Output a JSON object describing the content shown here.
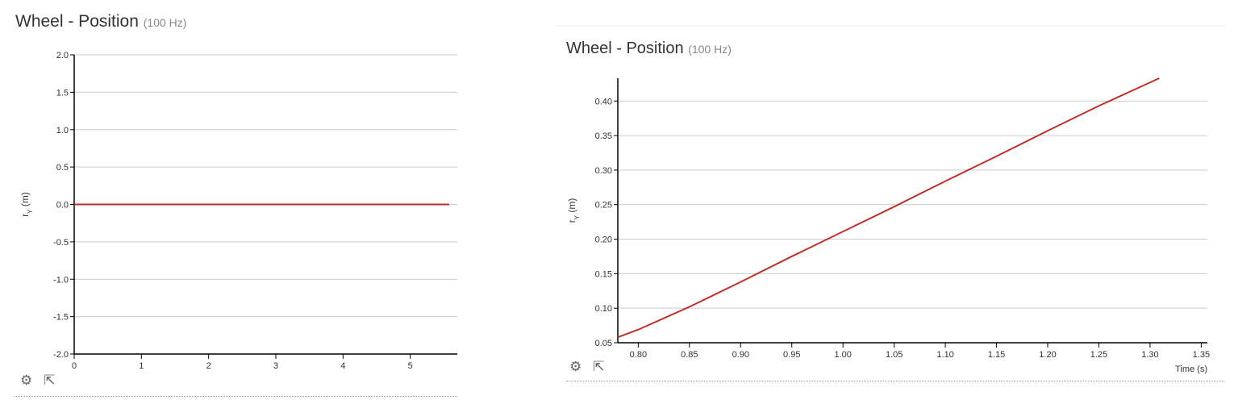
{
  "chart_data": [
    {
      "type": "line",
      "title": "Wheel - Position",
      "subtitle": "(100 Hz)",
      "xlabel": "",
      "ylabel": "r_Y (m)",
      "ylabel_main": "r",
      "ylabel_sub": "Y",
      "ylabel_unit": " (m)",
      "xlim": [
        0,
        5.7
      ],
      "ylim": [
        -2.0,
        2.0
      ],
      "xticks": [
        "0",
        "1",
        "2",
        "3",
        "4",
        "5"
      ],
      "xtick_values": [
        0,
        1,
        2,
        3,
        4,
        5
      ],
      "yticks": [
        "2.0",
        "1.5",
        "1.0",
        "0.5",
        "0.0",
        "-0.5",
        "-1.0",
        "-1.5",
        "-2.0"
      ],
      "ytick_values": [
        2,
        1.5,
        1,
        0.5,
        0,
        -0.5,
        -1,
        -1.5,
        -2
      ],
      "grid": true,
      "line_color": "#c0302b",
      "series": [
        {
          "x": [
            0,
            5.58
          ],
          "y": [
            0,
            0
          ]
        }
      ]
    },
    {
      "type": "line",
      "title": "Wheel - Position",
      "subtitle": "(100 Hz)",
      "xlabel": "Time (s)",
      "ylabel": "r_Y (m)",
      "ylabel_main": "r",
      "ylabel_sub": "Y",
      "ylabel_unit": " (m)",
      "xlim": [
        0.78,
        1.356
      ],
      "ylim": [
        0.05,
        0.433
      ],
      "xticks": [
        "0.80",
        "0.85",
        "0.90",
        "0.95",
        "1.00",
        "1.05",
        "1.10",
        "1.15",
        "1.20",
        "1.25",
        "1.30",
        "1.35"
      ],
      "xtick_values": [
        0.8,
        0.85,
        0.9,
        0.95,
        1.0,
        1.05,
        1.1,
        1.15,
        1.2,
        1.25,
        1.3,
        1.35
      ],
      "yticks": [
        "0.40",
        "0.35",
        "0.30",
        "0.25",
        "0.20",
        "0.15",
        "0.10",
        "0.05"
      ],
      "ytick_values": [
        0.4,
        0.35,
        0.3,
        0.25,
        0.2,
        0.15,
        0.1,
        0.05
      ],
      "grid": true,
      "line_color": "#c0302b",
      "series": [
        {
          "x": [
            0.78,
            0.8,
            0.85,
            0.9,
            0.95,
            1.0,
            1.05,
            1.1,
            1.15,
            1.2,
            1.25,
            1.309
          ],
          "y": [
            0.058,
            0.069,
            0.102,
            0.138,
            0.175,
            0.211,
            0.247,
            0.284,
            0.32,
            0.357,
            0.393,
            0.433
          ]
        }
      ]
    }
  ],
  "icons": [
    "gear-icon",
    "external-link-icon"
  ]
}
